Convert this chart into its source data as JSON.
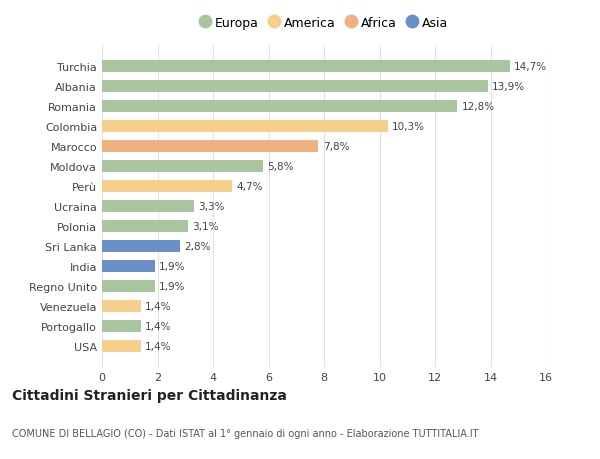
{
  "countries": [
    "Turchia",
    "Albania",
    "Romania",
    "Colombia",
    "Marocco",
    "Moldova",
    "Perù",
    "Ucraina",
    "Polonia",
    "Sri Lanka",
    "India",
    "Regno Unito",
    "Venezuela",
    "Portogallo",
    "USA"
  ],
  "values": [
    14.7,
    13.9,
    12.8,
    10.3,
    7.8,
    5.8,
    4.7,
    3.3,
    3.1,
    2.8,
    1.9,
    1.9,
    1.4,
    1.4,
    1.4
  ],
  "labels": [
    "14,7%",
    "13,9%",
    "12,8%",
    "10,3%",
    "7,8%",
    "5,8%",
    "4,7%",
    "3,3%",
    "3,1%",
    "2,8%",
    "1,9%",
    "1,9%",
    "1,4%",
    "1,4%",
    "1,4%"
  ],
  "continents": [
    "Europa",
    "Europa",
    "Europa",
    "America",
    "Africa",
    "Europa",
    "America",
    "Europa",
    "Europa",
    "Asia",
    "Asia",
    "Europa",
    "America",
    "Europa",
    "America"
  ],
  "colors": {
    "Europa": "#a8c5a0",
    "America": "#f5d08c",
    "Africa": "#f0b080",
    "Asia": "#6a8fc8"
  },
  "legend_order": [
    "Europa",
    "America",
    "Africa",
    "Asia"
  ],
  "title": "Cittadini Stranieri per Cittadinanza",
  "subtitle": "COMUNE DI BELLAGIO (CO) - Dati ISTAT al 1° gennaio di ogni anno - Elaborazione TUTTITALIA.IT",
  "xlim": [
    0,
    16
  ],
  "xticks": [
    0,
    2,
    4,
    6,
    8,
    10,
    12,
    14,
    16
  ],
  "bg_color": "#ffffff",
  "grid_color": "#e0e0e0"
}
